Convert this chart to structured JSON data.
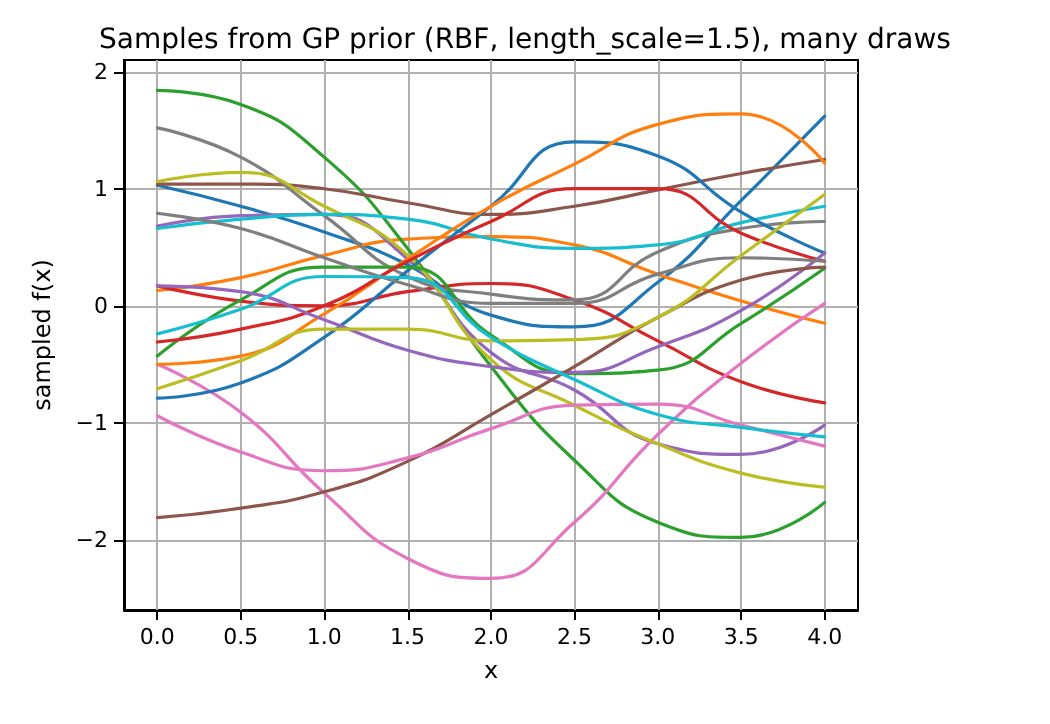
{
  "chart_data": {
    "type": "line",
    "title": "Samples from GP prior (RBF, length_scale=1.5), many draws",
    "xlabel": "x",
    "ylabel": "sampled f(x)",
    "x": [
      0,
      0.5,
      1,
      1.5,
      2,
      2.5,
      3,
      3.5,
      4
    ],
    "series": [
      {
        "color": "#1f77b4",
        "values": [
          1.03,
          0.85,
          0.63,
          0.35,
          -0.08,
          -0.18,
          0.2,
          0.9,
          1.62
        ]
      },
      {
        "color": "#ff7f0e",
        "values": [
          0.13,
          0.24,
          0.43,
          0.57,
          0.59,
          0.52,
          0.27,
          0.04,
          -0.15
        ]
      },
      {
        "color": "#2ca02c",
        "values": [
          1.84,
          1.72,
          1.27,
          0.49,
          -0.52,
          -1.32,
          -1.85,
          -1.98,
          -1.68
        ]
      },
      {
        "color": "#d62728",
        "values": [
          0.17,
          0.04,
          0.0,
          0.12,
          0.19,
          0.05,
          -0.3,
          -0.65,
          -0.83
        ]
      },
      {
        "color": "#9467bd",
        "values": [
          0.68,
          0.77,
          0.78,
          0.4,
          -0.4,
          -0.72,
          -1.18,
          -1.27,
          -1.02
        ]
      },
      {
        "color": "#8c564b",
        "values": [
          1.04,
          1.04,
          1.0,
          0.88,
          0.78,
          0.85,
          0.99,
          1.13,
          1.25
        ]
      },
      {
        "color": "#e377c2",
        "values": [
          -0.5,
          -0.91,
          -1.6,
          -2.16,
          -2.33,
          -1.85,
          -1.1,
          -0.49,
          0.02
        ]
      },
      {
        "color": "#7f7f7f",
        "values": [
          1.52,
          1.27,
          0.77,
          0.25,
          0.1,
          0.05,
          0.46,
          0.66,
          0.72
        ]
      },
      {
        "color": "#bcbd22",
        "values": [
          1.06,
          1.14,
          0.85,
          0.43,
          -0.46,
          -0.85,
          -1.18,
          -1.43,
          -1.55
        ]
      },
      {
        "color": "#17becf",
        "values": [
          0.66,
          0.74,
          0.78,
          0.74,
          0.57,
          0.49,
          0.52,
          0.71,
          0.85
        ]
      },
      {
        "color": "#1f77b4",
        "values": [
          -0.79,
          -0.66,
          -0.27,
          0.3,
          0.85,
          1.4,
          1.28,
          0.8,
          0.45
        ]
      },
      {
        "color": "#ff7f0e",
        "values": [
          -0.5,
          -0.43,
          -0.07,
          0.4,
          0.85,
          1.21,
          1.55,
          1.64,
          1.22
        ]
      },
      {
        "color": "#2ca02c",
        "values": [
          -0.43,
          0.05,
          0.33,
          0.33,
          -0.25,
          -0.58,
          -0.55,
          -0.15,
          0.32
        ]
      },
      {
        "color": "#d62728",
        "values": [
          -0.31,
          -0.2,
          0.0,
          0.38,
          0.72,
          1.0,
          1.0,
          0.62,
          0.38
        ]
      },
      {
        "color": "#9467bd",
        "values": [
          0.17,
          0.12,
          -0.12,
          -0.38,
          -0.52,
          -0.57,
          -0.35,
          -0.04,
          0.45
        ]
      },
      {
        "color": "#8c564b",
        "values": [
          -1.81,
          -1.73,
          -1.59,
          -1.33,
          -0.93,
          -0.52,
          -0.1,
          0.22,
          0.33
        ]
      },
      {
        "color": "#e377c2",
        "values": [
          -0.94,
          -1.25,
          -1.41,
          -1.3,
          -1.05,
          -0.85,
          -0.84,
          -1.02,
          -1.2
        ]
      },
      {
        "color": "#7f7f7f",
        "values": [
          0.79,
          0.66,
          0.41,
          0.18,
          0.02,
          0.02,
          0.27,
          0.41,
          0.38
        ]
      },
      {
        "color": "#bcbd22",
        "values": [
          -0.71,
          -0.47,
          -0.2,
          -0.2,
          -0.3,
          -0.29,
          -0.1,
          0.43,
          0.95
        ]
      },
      {
        "color": "#17becf",
        "values": [
          -0.24,
          -0.03,
          0.25,
          0.24,
          -0.27,
          -0.63,
          -0.93,
          -1.04,
          -1.12
        ]
      }
    ],
    "xlim": [
      -0.2,
      4.2
    ],
    "ylim": [
      -2.6,
      2.1
    ],
    "xticks": [
      {
        "value": 0,
        "label": "0.0"
      },
      {
        "value": 0.5,
        "label": "0.5"
      },
      {
        "value": 1,
        "label": "1.0"
      },
      {
        "value": 1.5,
        "label": "1.5"
      },
      {
        "value": 2,
        "label": "2.0"
      },
      {
        "value": 2.5,
        "label": "2.5"
      },
      {
        "value": 3,
        "label": "3.0"
      },
      {
        "value": 3.5,
        "label": "3.5"
      },
      {
        "value": 4,
        "label": "4.0"
      }
    ],
    "yticks": [
      {
        "value": -2,
        "label": "−2"
      },
      {
        "value": -1,
        "label": "−1"
      },
      0,
      1,
      2
    ],
    "grid": true,
    "marker": "none",
    "line_style": "solid"
  }
}
